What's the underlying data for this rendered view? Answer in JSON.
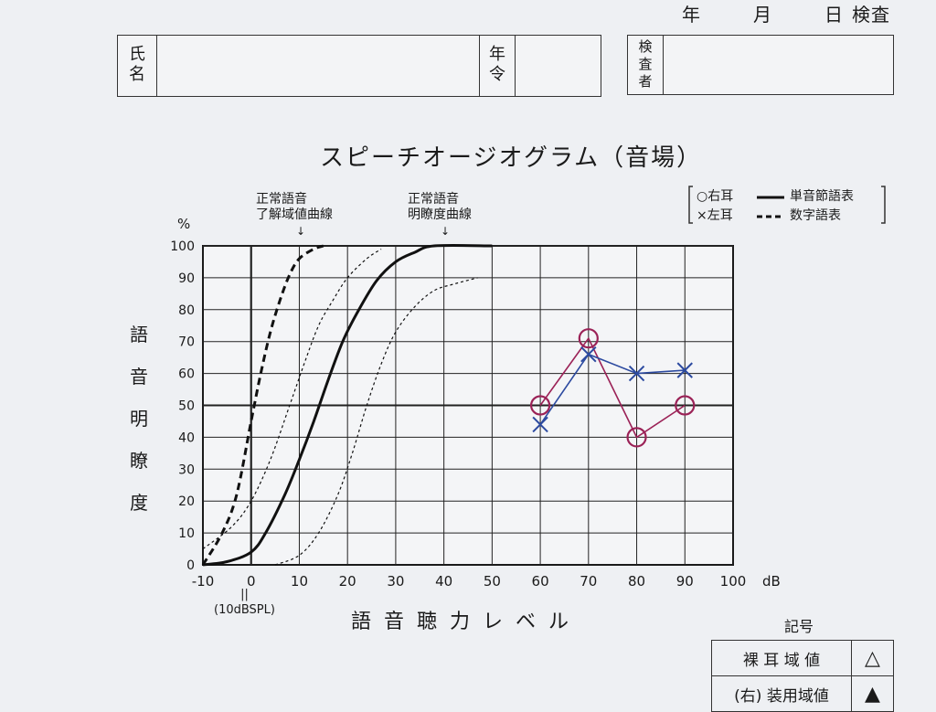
{
  "header": {
    "date": [
      "年",
      "月",
      "日",
      "検査"
    ],
    "name_label": "氏\n名",
    "age_label": "年\n令",
    "examiner_label": "検\n査\n者"
  },
  "title": "スピーチオージオグラム（音場）",
  "notes": {
    "left": "正常語音\n了解域値曲線",
    "right": "正常語音\n明瞭度曲線"
  },
  "legend": {
    "right_ear": "○右耳",
    "left_ear": "×左耳",
    "monosyllable": "単音節語表",
    "digit": "数字語表"
  },
  "y_unit": "%",
  "y_label_chars": [
    "語",
    "音",
    "明",
    "瞭",
    "度"
  ],
  "x_label": "語音聴力レベル",
  "x_sub": "||\n(10dBSPL)",
  "x_unit": "dB",
  "symbol_table": {
    "title": "記号",
    "rows": [
      {
        "label": "裸 耳 域 値",
        "symbol": "△"
      },
      {
        "label": "(右) 装用域値",
        "symbol": "▲"
      }
    ]
  },
  "chart_data": {
    "type": "line",
    "xlim": [
      -10,
      100
    ],
    "ylim": [
      0,
      100
    ],
    "x_ticks": [
      -10,
      0,
      10,
      20,
      30,
      40,
      50,
      60,
      70,
      80,
      90,
      100
    ],
    "y_ticks": [
      0,
      10,
      20,
      30,
      40,
      50,
      60,
      70,
      80,
      90,
      100
    ],
    "grid": true,
    "series": [
      {
        "name": "○右耳",
        "marker": "circle",
        "color": "#9b2257",
        "points": [
          [
            60,
            50
          ],
          [
            70,
            71
          ],
          [
            80,
            40
          ],
          [
            90,
            50
          ]
        ]
      },
      {
        "name": "×左耳",
        "marker": "x",
        "color": "#2c4aa0",
        "points": [
          [
            60,
            44
          ],
          [
            70,
            66
          ],
          [
            80,
            60
          ],
          [
            90,
            61
          ]
        ]
      }
    ],
    "reference_curves": [
      {
        "style": "thick-dashed",
        "points": [
          [
            -10,
            0
          ],
          [
            -6,
            10
          ],
          [
            -3,
            22
          ],
          [
            0,
            45
          ],
          [
            2,
            60
          ],
          [
            4,
            73
          ],
          [
            6,
            83
          ],
          [
            8,
            91
          ],
          [
            10,
            96
          ],
          [
            13,
            99
          ],
          [
            15,
            100
          ]
        ]
      },
      {
        "style": "thin-dotted",
        "points": [
          [
            -10,
            5
          ],
          [
            -4,
            12
          ],
          [
            0,
            20
          ],
          [
            4,
            33
          ],
          [
            8,
            50
          ],
          [
            11,
            63
          ],
          [
            14,
            75
          ],
          [
            17,
            83
          ],
          [
            20,
            90
          ],
          [
            24,
            96
          ],
          [
            27,
            99
          ]
        ]
      },
      {
        "style": "thick-solid",
        "points": [
          [
            -10,
            0
          ],
          [
            -5,
            1
          ],
          [
            0,
            4
          ],
          [
            3,
            10
          ],
          [
            7,
            22
          ],
          [
            10,
            33
          ],
          [
            13,
            45
          ],
          [
            16,
            58
          ],
          [
            19,
            70
          ],
          [
            22,
            79
          ],
          [
            26,
            89
          ],
          [
            30,
            95
          ],
          [
            34,
            98
          ],
          [
            38,
            100
          ],
          [
            50,
            100
          ]
        ]
      },
      {
        "style": "thin-dotted",
        "points": [
          [
            5,
            0
          ],
          [
            10,
            3
          ],
          [
            14,
            10
          ],
          [
            18,
            22
          ],
          [
            21,
            35
          ],
          [
            24,
            50
          ],
          [
            27,
            63
          ],
          [
            30,
            73
          ],
          [
            34,
            81
          ],
          [
            38,
            86
          ],
          [
            42,
            88
          ],
          [
            47,
            90
          ]
        ]
      }
    ]
  }
}
